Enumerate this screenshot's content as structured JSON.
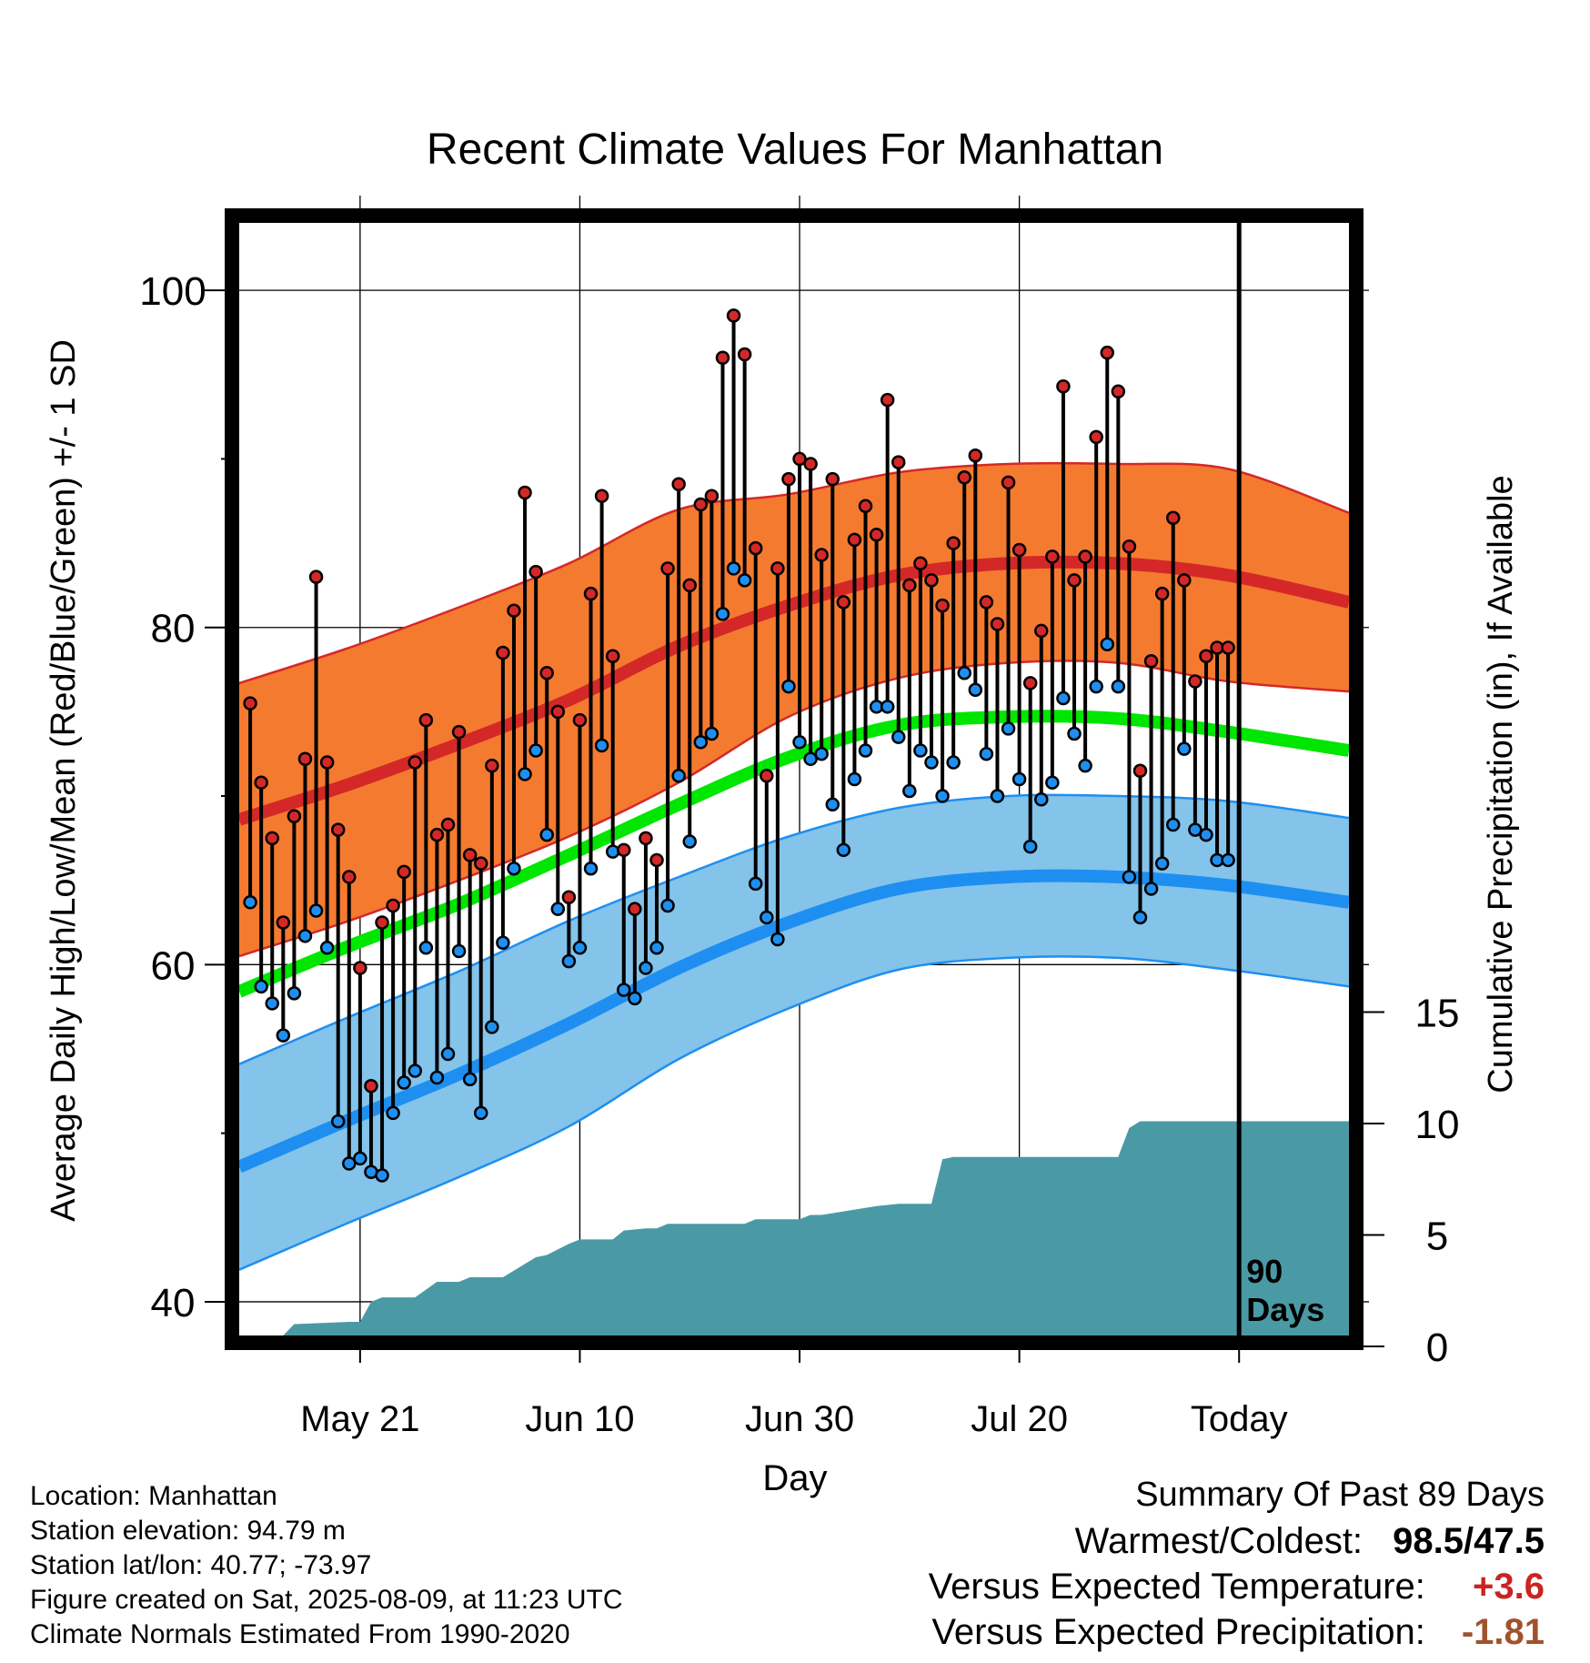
{
  "chart_data": {
    "type": "line",
    "title": "Recent Climate Values For Manhattan",
    "xlabel": "Day",
    "ylabel": "Average Daily High/Low/Mean (Red/Blue/Green) +/- 1 SD",
    "y2label": "Cumulative Precipitation (in), If Available",
    "x_tick_labels": [
      "May 21",
      "Jun 10",
      "Jun 30",
      "Jul 20",
      "Today"
    ],
    "y_ticks": [
      "40",
      "60",
      "80",
      "100"
    ],
    "y2_ticks": [
      "0",
      "5",
      "10",
      "15"
    ],
    "x_range": [
      "May 10",
      "Aug 19"
    ],
    "ylim": [
      38,
      104
    ],
    "y2lim": [
      0,
      50
    ],
    "today": "Aug 9",
    "window_label": "90 Days",
    "grid": true,
    "colors": {
      "high_band": "#f47a30",
      "high_mean": "#d42828",
      "mean_normal": "#00e600",
      "low_band": "#84c3ea",
      "low_mean": "#1e8ff0",
      "precip": "#4a9aa6",
      "high_dot": "#d42828",
      "low_dot": "#1e8ff0"
    },
    "normals": {
      "x": [
        "May 10",
        "May 20",
        "May 30",
        "Jun 9",
        "Jun 19",
        "Jun 29",
        "Jul 9",
        "Jul 19",
        "Jul 29",
        "Aug 8",
        "Aug 19"
      ],
      "high_mean": [
        68.6,
        70.7,
        73.1,
        75.7,
        78.9,
        81.3,
        83.1,
        83.8,
        83.8,
        83.1,
        81.5
      ],
      "high_sd": [
        8.1,
        8.1,
        8.1,
        8.1,
        8.1,
        6.6,
        6.1,
        5.9,
        5.9,
        6.3,
        5.3
      ],
      "low_mean": [
        48.0,
        50.8,
        53.5,
        56.5,
        59.8,
        62.5,
        64.5,
        65.2,
        65.2,
        64.7,
        63.7
      ],
      "low_sd": [
        6.1,
        6.1,
        6.1,
        6.1,
        5.4,
        5.1,
        4.8,
        4.8,
        4.8,
        5.0,
        5.0
      ],
      "mean": [
        58.4,
        61.1,
        63.6,
        66.5,
        69.5,
        72.3,
        74.2,
        74.7,
        74.6,
        73.8,
        72.7
      ]
    },
    "series": [
      {
        "name": "High",
        "x": [
          "May 11",
          "May 12",
          "May 13",
          "May 14",
          "May 15",
          "May 16",
          "May 17",
          "May 18",
          "May 19",
          "May 20",
          "May 21",
          "May 22",
          "May 23",
          "May 24",
          "May 25",
          "May 26",
          "May 27",
          "May 28",
          "May 29",
          "May 30",
          "May 31",
          "Jun 1",
          "Jun 2",
          "Jun 3",
          "Jun 4",
          "Jun 5",
          "Jun 6",
          "Jun 7",
          "Jun 8",
          "Jun 9",
          "Jun 10",
          "Jun 11",
          "Jun 12",
          "Jun 13",
          "Jun 14",
          "Jun 15",
          "Jun 16",
          "Jun 17",
          "Jun 18",
          "Jun 19",
          "Jun 20",
          "Jun 21",
          "Jun 22",
          "Jun 23",
          "Jun 24",
          "Jun 25",
          "Jun 26",
          "Jun 27",
          "Jun 28",
          "Jun 29",
          "Jun 30",
          "Jul 1",
          "Jul 2",
          "Jul 3",
          "Jul 4",
          "Jul 5",
          "Jul 6",
          "Jul 7",
          "Jul 8",
          "Jul 9",
          "Jul 10",
          "Jul 11",
          "Jul 12",
          "Jul 13",
          "Jul 14",
          "Jul 15",
          "Jul 16",
          "Jul 17",
          "Jul 18",
          "Jul 19",
          "Jul 20",
          "Jul 21",
          "Jul 22",
          "Jul 23",
          "Jul 24",
          "Jul 25",
          "Jul 26",
          "Jul 27",
          "Jul 28",
          "Jul 29",
          "Jul 30",
          "Jul 31",
          "Aug 1",
          "Aug 2",
          "Aug 3",
          "Aug 4",
          "Aug 5",
          "Aug 6",
          "Aug 7",
          "Aug 8"
        ],
        "values": [
          75.5,
          70.8,
          67.5,
          62.5,
          68.8,
          72.2,
          83.0,
          72.0,
          68.0,
          65.2,
          59.8,
          52.8,
          62.5,
          63.5,
          65.5,
          72.0,
          74.5,
          67.7,
          68.3,
          73.8,
          66.5,
          66.0,
          71.8,
          78.5,
          81.0,
          88.0,
          83.3,
          77.3,
          75.0,
          64.0,
          74.5,
          82.0,
          87.8,
          78.3,
          66.8,
          63.3,
          67.5,
          66.2,
          83.5,
          88.5,
          82.5,
          87.3,
          87.8,
          96.0,
          98.5,
          96.2,
          84.7,
          71.2,
          83.5,
          88.8,
          90.0,
          89.7,
          84.3,
          88.8,
          81.5,
          85.2,
          87.2,
          85.5,
          93.5,
          89.8,
          82.5,
          83.8,
          82.8,
          81.3,
          85.0,
          88.9,
          90.2,
          81.5,
          80.2,
          88.6,
          84.6,
          76.7,
          79.8,
          84.2,
          94.3,
          82.8,
          84.2,
          91.3,
          96.3,
          94.0,
          84.8,
          71.5,
          78.0,
          82.0,
          86.5,
          82.8,
          76.8,
          78.3,
          78.8,
          78.8
        ]
      },
      {
        "name": "Low",
        "x": [
          "May 11",
          "May 12",
          "May 13",
          "May 14",
          "May 15",
          "May 16",
          "May 17",
          "May 18",
          "May 19",
          "May 20",
          "May 21",
          "May 22",
          "May 23",
          "May 24",
          "May 25",
          "May 26",
          "May 27",
          "May 28",
          "May 29",
          "May 30",
          "May 31",
          "Jun 1",
          "Jun 2",
          "Jun 3",
          "Jun 4",
          "Jun 5",
          "Jun 6",
          "Jun 7",
          "Jun 8",
          "Jun 9",
          "Jun 10",
          "Jun 11",
          "Jun 12",
          "Jun 13",
          "Jun 14",
          "Jun 15",
          "Jun 16",
          "Jun 17",
          "Jun 18",
          "Jun 19",
          "Jun 20",
          "Jun 21",
          "Jun 22",
          "Jun 23",
          "Jun 24",
          "Jun 25",
          "Jun 26",
          "Jun 27",
          "Jun 28",
          "Jun 29",
          "Jun 30",
          "Jul 1",
          "Jul 2",
          "Jul 3",
          "Jul 4",
          "Jul 5",
          "Jul 6",
          "Jul 7",
          "Jul 8",
          "Jul 9",
          "Jul 10",
          "Jul 11",
          "Jul 12",
          "Jul 13",
          "Jul 14",
          "Jul 15",
          "Jul 16",
          "Jul 17",
          "Jul 18",
          "Jul 19",
          "Jul 20",
          "Jul 21",
          "Jul 22",
          "Jul 23",
          "Jul 24",
          "Jul 25",
          "Jul 26",
          "Jul 27",
          "Jul 28",
          "Jul 29",
          "Jul 30",
          "Jul 31",
          "Aug 1",
          "Aug 2",
          "Aug 3",
          "Aug 4",
          "Aug 5",
          "Aug 6",
          "Aug 7",
          "Aug 8"
        ],
        "values": [
          63.7,
          58.7,
          57.7,
          55.8,
          58.3,
          61.7,
          63.2,
          61.0,
          50.7,
          48.2,
          48.5,
          47.7,
          47.5,
          51.2,
          53.0,
          53.7,
          61.0,
          53.3,
          54.7,
          60.8,
          53.2,
          51.2,
          56.3,
          61.3,
          65.7,
          71.3,
          72.7,
          67.7,
          63.3,
          60.2,
          61.0,
          65.7,
          73.0,
          66.7,
          58.5,
          58.0,
          59.8,
          61.0,
          63.5,
          71.2,
          67.3,
          73.2,
          73.7,
          80.8,
          83.5,
          82.8,
          64.8,
          62.8,
          61.5,
          76.5,
          73.2,
          72.2,
          72.5,
          69.5,
          66.8,
          71.0,
          72.7,
          75.3,
          75.3,
          73.5,
          70.3,
          72.7,
          72.0,
          70.0,
          72.0,
          77.3,
          76.3,
          72.5,
          70.0,
          74.0,
          71.0,
          67.0,
          69.8,
          70.8,
          75.8,
          73.7,
          71.8,
          76.5,
          79.0,
          76.5,
          65.2,
          62.8,
          64.5,
          66.0,
          68.3,
          72.8,
          68.0,
          67.7,
          66.2,
          66.2
        ]
      },
      {
        "name": "Cumulative Precipitation",
        "x": [
          "May 10",
          "May 12",
          "May 14",
          "May 15",
          "May 20",
          "May 21",
          "May 22",
          "May 23",
          "May 26",
          "May 28",
          "May 30",
          "May 31",
          "Jun 3",
          "Jun 6",
          "Jun 7",
          "Jun 9",
          "Jun 10",
          "Jun 13",
          "Jun 14",
          "Jun 16",
          "Jun 17",
          "Jun 18",
          "Jun 25",
          "Jun 26",
          "Jun 30",
          "Jul 1",
          "Jul 2",
          "Jul 7",
          "Jul 9",
          "Jul 12",
          "Jul 13",
          "Jul 14",
          "Jul 29",
          "Jul 30",
          "Jul 31",
          "Aug 19"
        ],
        "values": [
          0,
          0,
          0,
          1.0,
          1.1,
          1.1,
          2.0,
          2.2,
          2.2,
          2.9,
          2.9,
          3.1,
          3.1,
          4.0,
          4.1,
          4.6,
          4.8,
          4.8,
          5.2,
          5.3,
          5.3,
          5.5,
          5.5,
          5.7,
          5.7,
          5.9,
          5.9,
          6.3,
          6.4,
          6.4,
          8.4,
          8.5,
          8.5,
          9.8,
          10.1,
          10.1
        ]
      }
    ]
  },
  "footer": {
    "location": "Location: Manhattan",
    "elevation": "Station elevation: 94.79 m",
    "latlon": "Station lat/lon: 40.77; -73.97",
    "created": "Figure created on Sat, 2025-08-09, at 11:23 UTC",
    "normals": "Climate Normals Estimated From 1990-2020"
  },
  "summary": {
    "heading": "Summary Of Past 89 Days",
    "warmest_label": "Warmest/Coldest:",
    "warmest_value": "98.5/47.5",
    "temp_label": "Versus Expected Temperature:",
    "temp_value": "+3.6",
    "temp_color": "#cc2222",
    "precip_label": "Versus Expected Precipitation:",
    "precip_value": "-1.81",
    "precip_color": "#a0522d"
  }
}
